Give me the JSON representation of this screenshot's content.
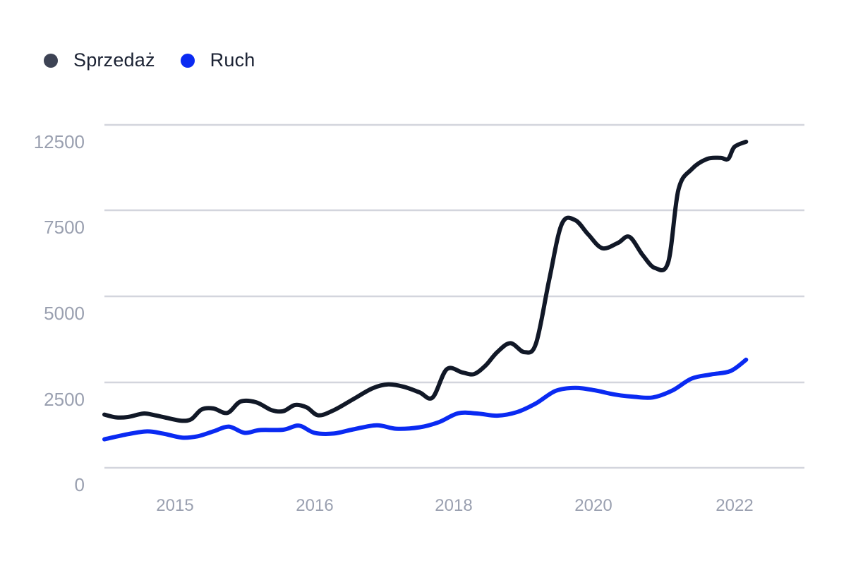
{
  "chart_data": {
    "type": "line",
    "title": "",
    "xlabel": "",
    "ylabel": "",
    "ylim": [
      0,
      12500
    ],
    "xlim": [
      2014.5,
      2023.5
    ],
    "y_ticks": [
      "0",
      "2500",
      "5000",
      "7500",
      "12500"
    ],
    "x_ticks": [
      "2015",
      "2016",
      "2018",
      "2020",
      "2022"
    ],
    "grid": true,
    "legend_position": "top-left",
    "series": [
      {
        "name": "Sprzedaż",
        "color": "#111827",
        "legend_color": "#3d4354",
        "points": [
          [
            2014.5,
            1550
          ],
          [
            2014.65,
            1470
          ],
          [
            2014.8,
            1480
          ],
          [
            2015.0,
            1580
          ],
          [
            2015.15,
            1530
          ],
          [
            2015.35,
            1430
          ],
          [
            2015.5,
            1370
          ],
          [
            2015.62,
            1420
          ],
          [
            2015.75,
            1700
          ],
          [
            2015.9,
            1730
          ],
          [
            2016.08,
            1600
          ],
          [
            2016.25,
            1930
          ],
          [
            2016.45,
            1910
          ],
          [
            2016.65,
            1680
          ],
          [
            2016.8,
            1650
          ],
          [
            2016.95,
            1830
          ],
          [
            2017.1,
            1760
          ],
          [
            2017.25,
            1530
          ],
          [
            2017.45,
            1680
          ],
          [
            2017.7,
            2000
          ],
          [
            2017.95,
            2320
          ],
          [
            2018.15,
            2430
          ],
          [
            2018.35,
            2360
          ],
          [
            2018.55,
            2200
          ],
          [
            2018.72,
            2050
          ],
          [
            2018.9,
            2870
          ],
          [
            2019.1,
            2780
          ],
          [
            2019.25,
            2730
          ],
          [
            2019.4,
            2980
          ],
          [
            2019.55,
            3370
          ],
          [
            2019.72,
            3630
          ],
          [
            2019.9,
            3370
          ],
          [
            2020.05,
            3630
          ],
          [
            2020.22,
            5500
          ],
          [
            2020.38,
            7100
          ],
          [
            2020.55,
            7220
          ],
          [
            2020.72,
            6800
          ],
          [
            2020.9,
            6400
          ],
          [
            2021.1,
            6550
          ],
          [
            2021.25,
            6730
          ],
          [
            2021.42,
            6200
          ],
          [
            2021.58,
            5820
          ],
          [
            2021.75,
            6000
          ],
          [
            2021.88,
            8100
          ],
          [
            2022.05,
            8700
          ],
          [
            2022.25,
            9000
          ],
          [
            2022.42,
            9030
          ],
          [
            2022.52,
            9000
          ],
          [
            2022.6,
            9350
          ],
          [
            2022.75,
            9500
          ]
        ]
      },
      {
        "name": "Ruch",
        "color": "#0a2af2",
        "legend_color": "#0a2af2",
        "points": [
          [
            2014.5,
            830
          ],
          [
            2014.8,
            980
          ],
          [
            2015.05,
            1060
          ],
          [
            2015.25,
            1000
          ],
          [
            2015.5,
            880
          ],
          [
            2015.7,
            920
          ],
          [
            2015.9,
            1060
          ],
          [
            2016.1,
            1200
          ],
          [
            2016.3,
            1020
          ],
          [
            2016.5,
            1100
          ],
          [
            2016.8,
            1110
          ],
          [
            2017.0,
            1230
          ],
          [
            2017.2,
            1020
          ],
          [
            2017.45,
            1000
          ],
          [
            2017.7,
            1120
          ],
          [
            2018.0,
            1240
          ],
          [
            2018.25,
            1140
          ],
          [
            2018.55,
            1180
          ],
          [
            2018.8,
            1330
          ],
          [
            2019.05,
            1590
          ],
          [
            2019.3,
            1580
          ],
          [
            2019.55,
            1520
          ],
          [
            2019.8,
            1620
          ],
          [
            2020.05,
            1880
          ],
          [
            2020.3,
            2240
          ],
          [
            2020.55,
            2330
          ],
          [
            2020.8,
            2260
          ],
          [
            2021.05,
            2140
          ],
          [
            2021.3,
            2070
          ],
          [
            2021.55,
            2050
          ],
          [
            2021.8,
            2250
          ],
          [
            2022.05,
            2600
          ],
          [
            2022.3,
            2720
          ],
          [
            2022.55,
            2820
          ],
          [
            2022.75,
            3150
          ]
        ]
      }
    ]
  }
}
